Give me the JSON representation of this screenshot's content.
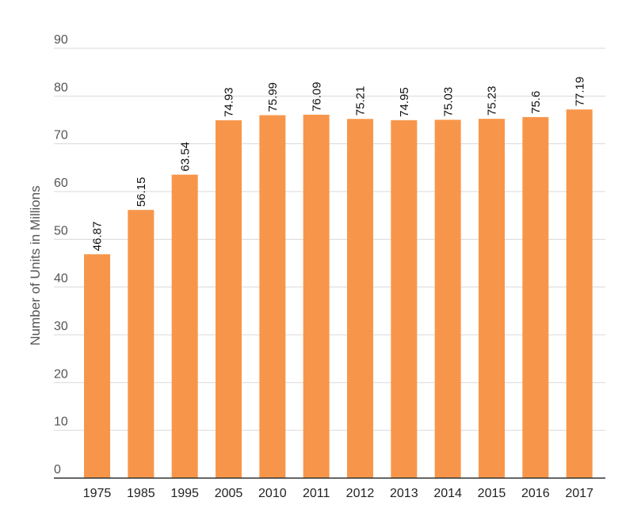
{
  "chart_data": {
    "type": "bar",
    "title": "",
    "xlabel": "",
    "ylabel": "Number of Units in Millions",
    "ylim": [
      0,
      90
    ],
    "y_ticks": [
      0,
      10,
      20,
      30,
      40,
      50,
      60,
      70,
      80,
      90
    ],
    "grid": true,
    "bar_color": "#F7964A",
    "categories": [
      "1975",
      "1985",
      "1995",
      "2005",
      "2010",
      "2011",
      "2012",
      "2013",
      "2014",
      "2015",
      "2016",
      "2017"
    ],
    "values": [
      46.87,
      56.15,
      63.54,
      74.93,
      75.99,
      76.09,
      75.21,
      74.95,
      75.03,
      75.23,
      75.6,
      77.19
    ],
    "data_labels": [
      "46.87",
      "56.15",
      "63.54",
      "74.93",
      "75.99",
      "76.09",
      "75.21",
      "74.95",
      "75.03",
      "75.23",
      "75.6",
      "77.19"
    ]
  }
}
